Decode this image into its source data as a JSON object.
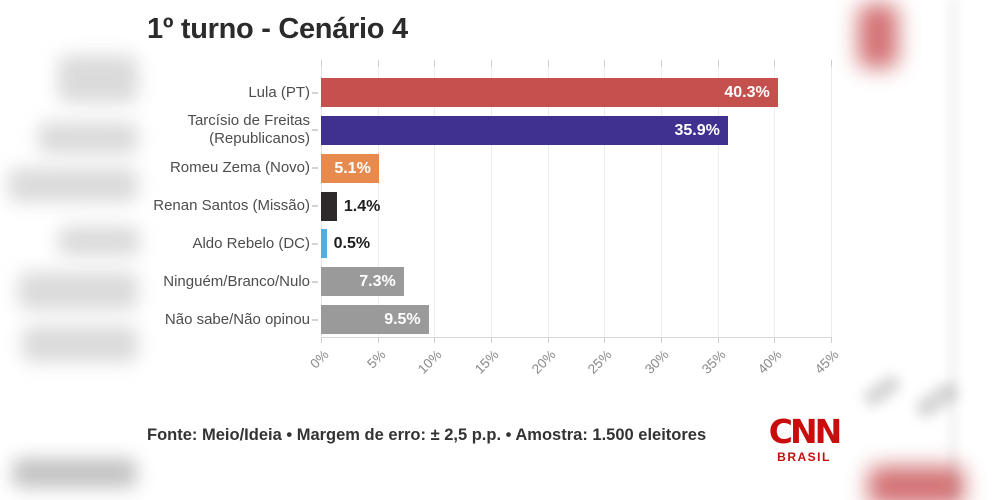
{
  "page_title": "1º turno - Cenário 4",
  "chart_data": {
    "type": "bar",
    "orientation": "horizontal",
    "title": "1º turno - Cenário 4",
    "categories": [
      "Lula (PT)",
      "Tarcísio de Freitas\n(Republicanos)",
      "Romeu Zema (Novo)",
      "Renan Santos (Missão)",
      "Aldo Rebelo (DC)",
      "Ninguém/Branco/Nulo",
      "Não sabe/Não opinou"
    ],
    "values": [
      40.3,
      35.9,
      5.1,
      1.4,
      0.5,
      7.3,
      9.5
    ],
    "value_labels": [
      "40.3%",
      "35.9%",
      "5.1%",
      "1.4%",
      "0.5%",
      "7.3%",
      "9.5%"
    ],
    "bar_colors": [
      "#c5514f",
      "#40308f",
      "#e78a4d",
      "#2e2a2b",
      "#52ade0",
      "#9a9a9a",
      "#9a9a9a"
    ],
    "label_inside": [
      true,
      true,
      true,
      false,
      false,
      true,
      true
    ],
    "xlabel": "",
    "ylabel": "",
    "xlim": [
      0,
      45
    ],
    "xtick_labels": [
      "0%",
      "5%",
      "10%",
      "15%",
      "20%",
      "25%",
      "30%",
      "35%",
      "40%",
      "45%"
    ],
    "grid": true,
    "legend": false
  },
  "footer": {
    "source": "Fonte: Meio/Ideia • Margem de erro: ± 2,5 p.p. • Amostra: 1.500 eleitores",
    "logo_text": "CNN",
    "logo_sub": "BRASIL",
    "logo_color": "#c90d0d"
  }
}
